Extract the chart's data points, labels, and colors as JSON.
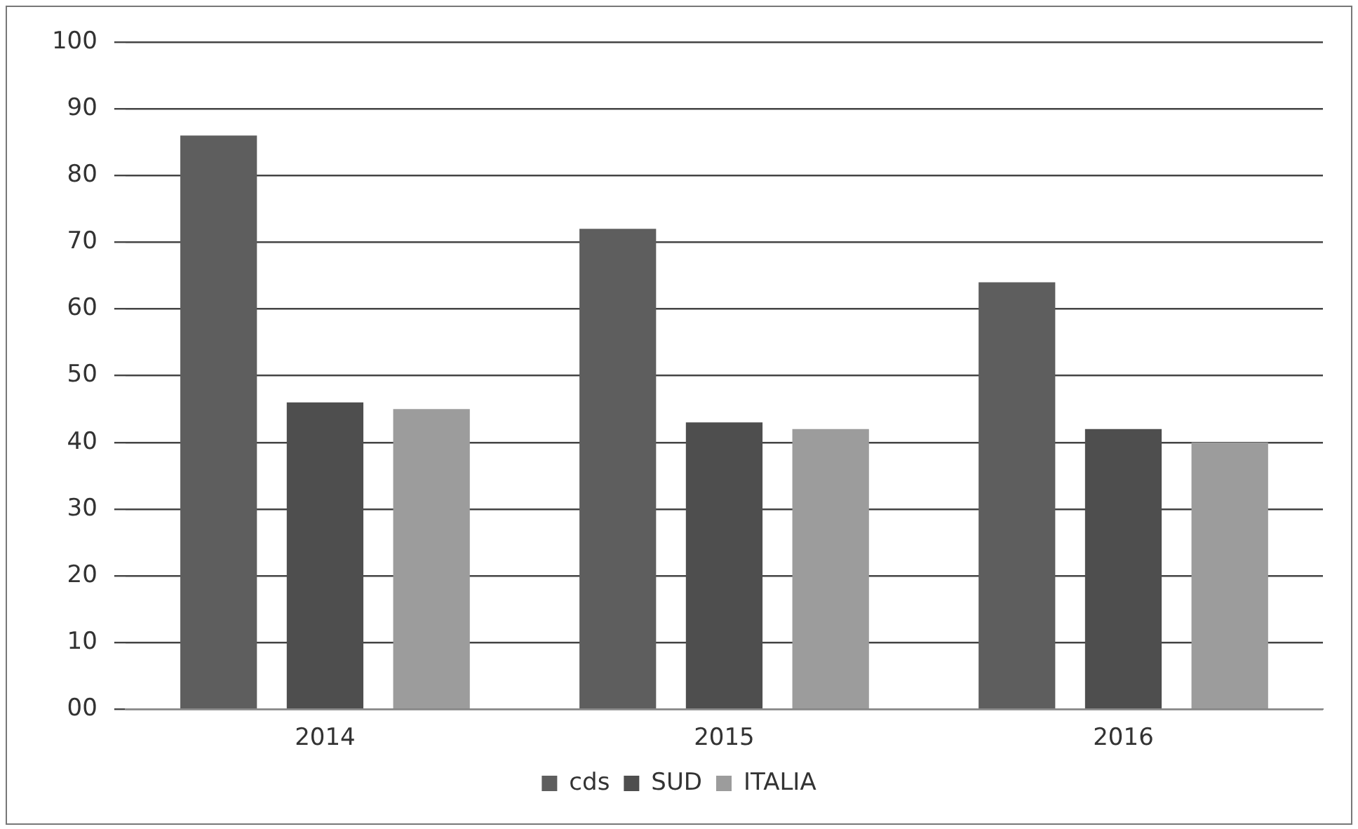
{
  "chart_data": {
    "type": "bar",
    "categories": [
      "2014",
      "2015",
      "2016"
    ],
    "series": [
      {
        "name": "cds",
        "color": "#5e5e5e",
        "values": [
          86,
          72,
          64
        ]
      },
      {
        "name": "SUD",
        "color": "#4e4e4e",
        "values": [
          46,
          43,
          42
        ]
      },
      {
        "name": "ITALIA",
        "color": "#9c9c9c",
        "values": [
          45,
          42,
          40
        ]
      }
    ],
    "ylim": [
      0,
      100
    ],
    "yticks": [
      {
        "value": 0,
        "label": "00"
      },
      10,
      20,
      30,
      40,
      50,
      60,
      70,
      80,
      90,
      100
    ],
    "grid": "y",
    "legend": "bottom"
  }
}
